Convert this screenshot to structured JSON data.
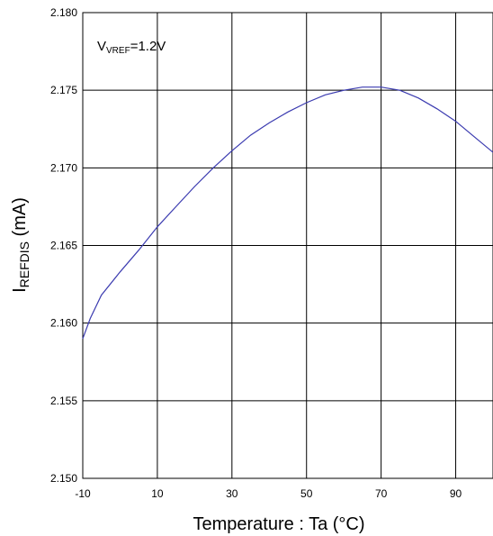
{
  "chart_data": {
    "type": "line",
    "xlabel": "Temperature : Ta (°C)",
    "ylabel": {
      "main": "I",
      "sub": "REFDIS",
      "tail": " (mA)"
    },
    "annotation": {
      "main": "V",
      "sub": "VREF",
      "tail": "=1.2V"
    },
    "xlim": [
      -10,
      100
    ],
    "ylim": [
      2.15,
      2.18
    ],
    "x_ticks": [
      -10,
      10,
      30,
      50,
      70,
      90
    ],
    "y_ticks": [
      2.15,
      2.155,
      2.16,
      2.165,
      2.17,
      2.175,
      2.18
    ],
    "x_tick_labels": [
      "-10",
      "10",
      "30",
      "50",
      "70",
      "90"
    ],
    "y_tick_labels": [
      "2.150",
      "2.155",
      "2.160",
      "2.165",
      "2.170",
      "2.175",
      "2.180"
    ],
    "grid": true,
    "line_color": "#3b3bb0",
    "series": [
      {
        "x": [
          -10,
          -8,
          -5,
          0,
          5,
          10,
          15,
          20,
          25,
          30,
          35,
          40,
          45,
          50,
          55,
          60,
          65,
          70,
          75,
          80,
          85,
          90,
          95,
          100
        ],
        "y": [
          2.159,
          2.1603,
          2.1618,
          2.1633,
          2.1647,
          2.1662,
          2.1675,
          2.1688,
          2.17,
          2.1711,
          2.1721,
          2.1729,
          2.1736,
          2.1742,
          2.1747,
          2.175,
          2.1752,
          2.1752,
          2.175,
          2.1745,
          2.1738,
          2.173,
          2.172,
          2.171
        ]
      }
    ]
  }
}
